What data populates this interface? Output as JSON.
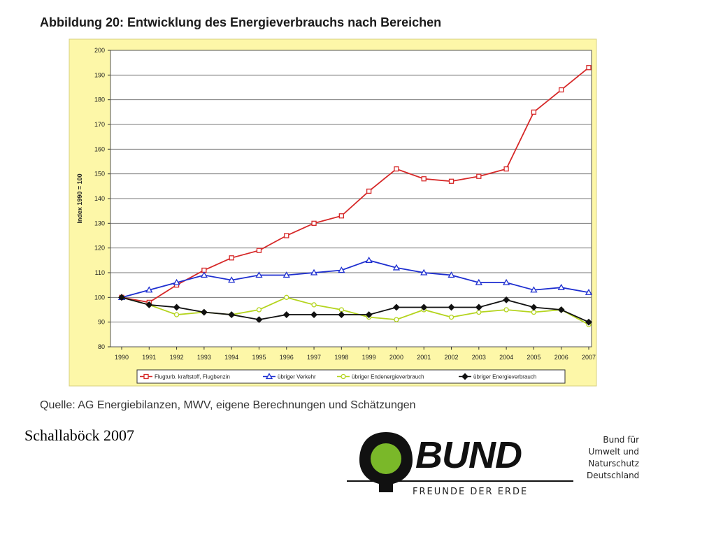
{
  "figure_title": "Abbildung 20: Entwicklung des Energieverbrauchs nach Bereichen",
  "source_note": "Quelle: AG Energiebilanzen, MWV, eigene Berechnungen und Schätzungen",
  "author_note": "Schallaböck 2007",
  "logo": {
    "wordmark": "BUND",
    "tagline": "FREUNDE DER ERDE",
    "side_lines": [
      "Bund für",
      "Umwelt und",
      "Naturschutz",
      "Deutschland"
    ],
    "green": "#7ab829"
  },
  "chart_data": {
    "type": "line",
    "title": "",
    "xlabel": "",
    "ylabel": "Index 1990 = 100",
    "ylim": [
      80,
      200
    ],
    "y_ticks": [
      "80",
      "90",
      "100",
      "110",
      "120",
      "130",
      "140",
      "150",
      "160",
      "170",
      "180",
      "190",
      "200"
    ],
    "grid": true,
    "legend_position": "bottom",
    "background": "#fdf7a8",
    "categories": [
      "1990",
      "1991",
      "1992",
      "1993",
      "1994",
      "1995",
      "1996",
      "1997",
      "1998",
      "1999",
      "2000",
      "2001",
      "2002",
      "2003",
      "2004",
      "2005",
      "2006",
      "2007"
    ],
    "series": [
      {
        "name": "Flugturb. kraftstoff, Flugbenzin",
        "color": "#d62828",
        "marker": "square",
        "values": [
          100,
          98,
          105,
          111,
          116,
          119,
          125,
          130,
          133,
          143,
          152,
          148,
          147,
          149,
          152,
          175,
          184,
          193
        ]
      },
      {
        "name": "übriger Verkehr",
        "color": "#1e2fd0",
        "marker": "triangle",
        "values": [
          100,
          103,
          106,
          109,
          107,
          109,
          109,
          110,
          111,
          115,
          112,
          110,
          109,
          106,
          106,
          103,
          104,
          102
        ]
      },
      {
        "name": "übriger Endenergieverbrauch",
        "color": "#b4d41e",
        "marker": "circle",
        "values": [
          100,
          97,
          93,
          94,
          93,
          95,
          100,
          97,
          95,
          92,
          91,
          95,
          92,
          94,
          95,
          94,
          95,
          89
        ]
      },
      {
        "name": "übriger Energieverbrauch",
        "color": "#111111",
        "marker": "diamond",
        "values": [
          100,
          97,
          96,
          94,
          93,
          91,
          93,
          93,
          93,
          93,
          96,
          96,
          96,
          96,
          99,
          96,
          95,
          90
        ]
      }
    ]
  }
}
